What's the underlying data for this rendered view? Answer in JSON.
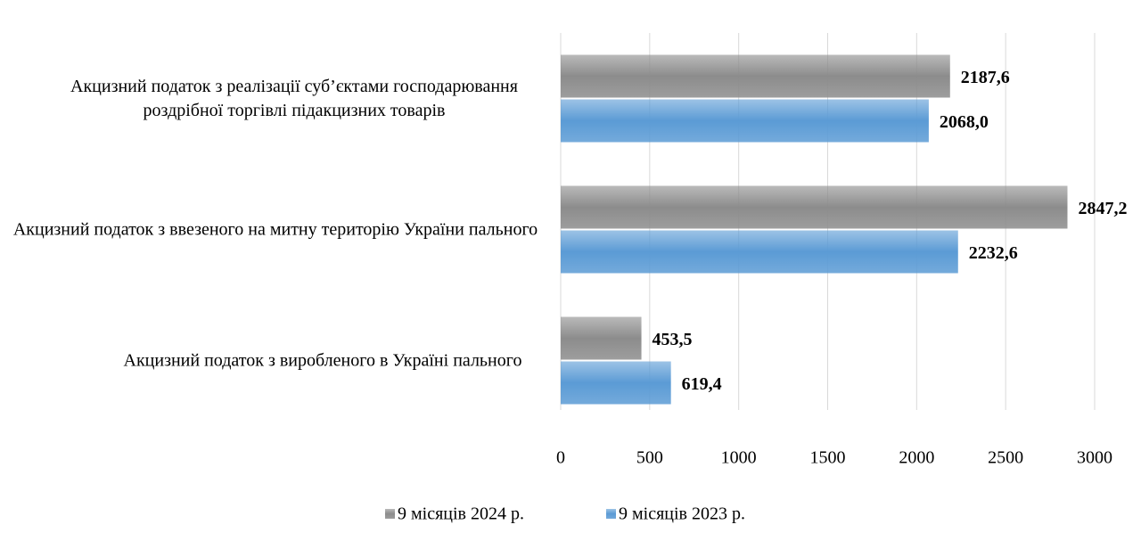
{
  "chart_data": {
    "type": "barh",
    "categories": [
      "Акцизний податок з реалізації суб’єктами господарювання роздрібної торгівлі підакцизних товарів",
      "Акцизний податок з ввезеного на митну територію України пального",
      "Акцизний податок з виробленого в Україні пального"
    ],
    "series": [
      {
        "name": "9 місяців 2024 р.",
        "color": "#8c8c8c",
        "values": [
          2187.6,
          2847.2,
          453.5
        ],
        "value_labels": [
          "2187,6",
          "2847,2",
          "453,5"
        ]
      },
      {
        "name": "9 місяців 2023 р.",
        "color": "#5b9bd5",
        "values": [
          2068.0,
          2232.6,
          619.4
        ],
        "value_labels": [
          "2068,0",
          "2232,6",
          "619,4"
        ]
      }
    ],
    "xlim": [
      0,
      3000
    ],
    "xticks": [
      0,
      500,
      1000,
      1500,
      2000,
      2500,
      3000
    ],
    "grid": true,
    "legend": "bottom"
  }
}
